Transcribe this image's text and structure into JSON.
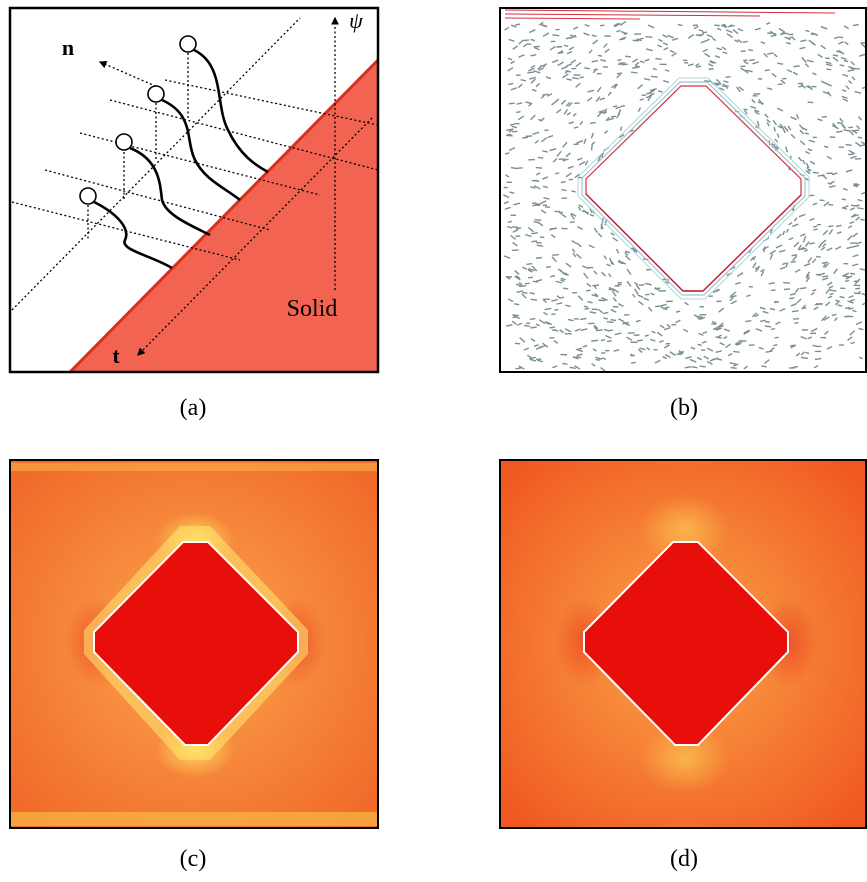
{
  "panel_a": {
    "normal_label": "n",
    "psi_label": "ψ",
    "tangent_label": "t",
    "solid_label": "Solid"
  },
  "captions": [
    "(a)",
    "(b)",
    "(c)",
    "(d)"
  ]
}
